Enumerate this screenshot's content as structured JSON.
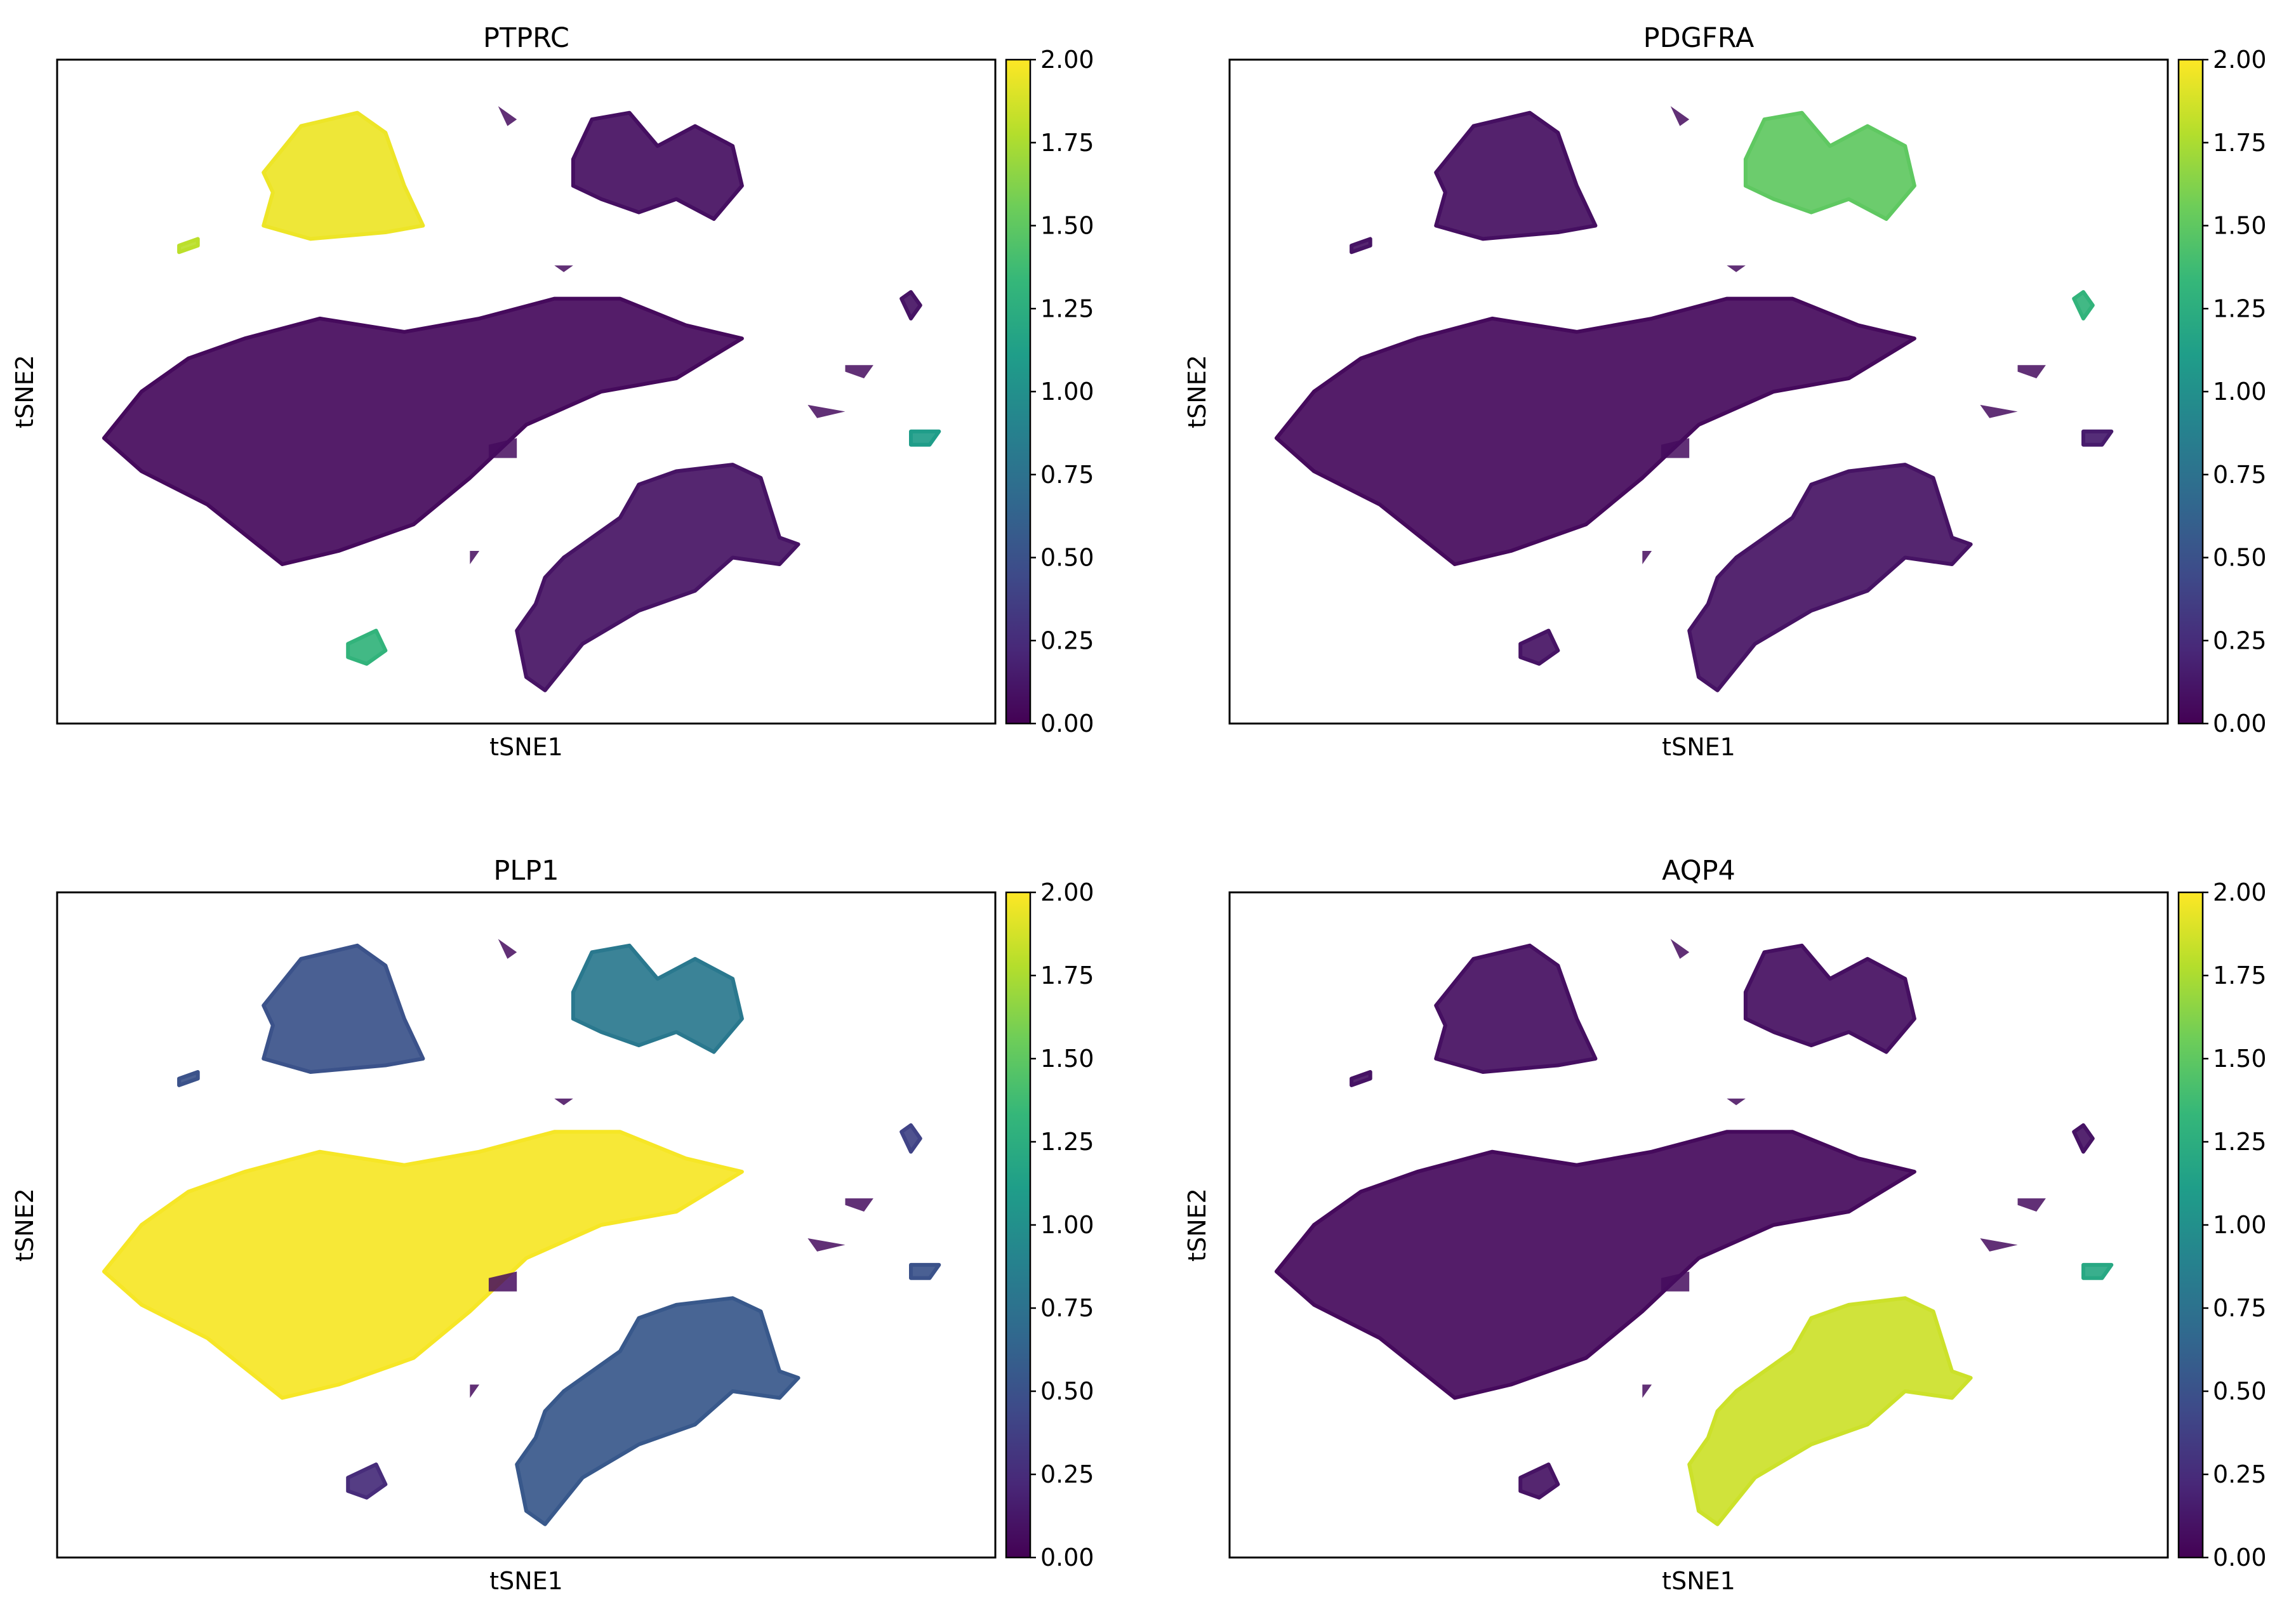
{
  "chart_data": [
    {
      "type": "scatter",
      "title": "PTPRC",
      "xlabel": "tSNE1",
      "ylabel": "tSNE2",
      "colorbar": {
        "colormap": "viridis",
        "range": [
          0,
          2
        ],
        "ticks": [
          "0.00",
          "0.25",
          "0.50",
          "0.75",
          "1.00",
          "1.25",
          "1.50",
          "1.75",
          "2.00"
        ]
      },
      "cluster_values": {
        "big-left": 0.05,
        "upper-left": 1.95,
        "upper-right": 0.08,
        "lower-right": 0.1,
        "bottom-small": 1.3,
        "right-small-1": 0.1,
        "right-small-4": 1.1,
        "tiny-left": 1.8
      }
    },
    {
      "type": "scatter",
      "title": "PDGFRA",
      "xlabel": "tSNE1",
      "ylabel": "tSNE2",
      "colorbar": {
        "colormap": "viridis",
        "range": [
          0,
          2
        ],
        "ticks": [
          "0.00",
          "0.25",
          "0.50",
          "0.75",
          "1.00",
          "1.25",
          "1.50",
          "1.75",
          "2.00"
        ]
      },
      "cluster_values": {
        "big-left": 0.05,
        "upper-left": 0.08,
        "upper-right": 1.5,
        "lower-right": 0.1,
        "bottom-small": 0.1,
        "right-small-1": 1.3,
        "right-small-4": 0.15,
        "tiny-left": 0.1
      }
    },
    {
      "type": "scatter",
      "title": "PLP1",
      "xlabel": "tSNE1",
      "ylabel": "tSNE2",
      "colorbar": {
        "colormap": "viridis",
        "range": [
          0,
          2
        ],
        "ticks": [
          "0.00",
          "0.25",
          "0.50",
          "0.75",
          "1.00",
          "1.25",
          "1.50",
          "1.75",
          "2.00"
        ]
      },
      "cluster_values": {
        "big-left": 1.98,
        "upper-left": 0.5,
        "upper-right": 0.8,
        "lower-right": 0.55,
        "bottom-small": 0.25,
        "right-small-1": 0.4,
        "right-small-4": 0.5,
        "tiny-left": 0.5
      }
    },
    {
      "type": "scatter",
      "title": "AQP4",
      "xlabel": "tSNE1",
      "ylabel": "tSNE2",
      "colorbar": {
        "colormap": "viridis",
        "range": [
          0,
          2
        ],
        "ticks": [
          "0.00",
          "0.25",
          "0.50",
          "0.75",
          "1.00",
          "1.25",
          "1.50",
          "1.75",
          "2.00"
        ]
      },
      "cluster_values": {
        "big-left": 0.05,
        "upper-left": 0.08,
        "upper-right": 0.08,
        "lower-right": 1.85,
        "bottom-small": 0.1,
        "right-small-1": 0.1,
        "right-small-4": 1.2,
        "tiny-left": 0.1
      }
    }
  ]
}
